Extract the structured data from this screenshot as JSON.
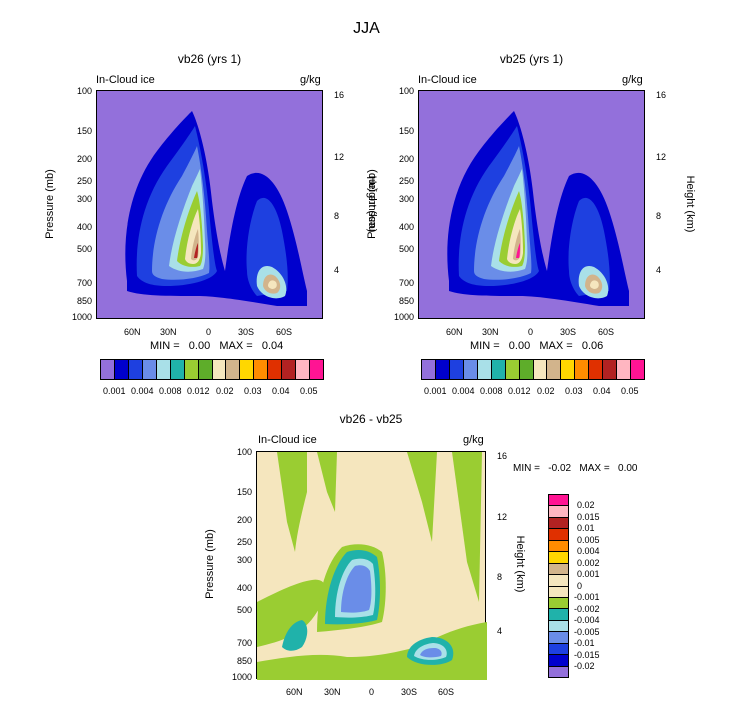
{
  "figure": {
    "title": "JJA",
    "variable_label": "In-Cloud ice",
    "units": "g/kg",
    "y_label": "Pressure (mb)",
    "y2_label": "Height (km)"
  },
  "chart_data": [
    {
      "type": "heatmap",
      "title": "vb26 (yrs 1)",
      "ylabel": "Pressure (mb)",
      "y2label": "Height (km)",
      "xticks": [
        "60N",
        "30N",
        "0",
        "30S",
        "60S"
      ],
      "yticks": [
        "100",
        "150",
        "200",
        "250",
        "300",
        "400",
        "500",
        "700",
        "850",
        "1000"
      ],
      "y2ticks": [
        "16",
        "12",
        "8",
        "4"
      ],
      "min_text": "MIN =   0.00   MAX =   0.04",
      "colorbar_levels": [
        "0.001",
        "0.004",
        "0.008",
        "0.012",
        "0.02",
        "0.03",
        "0.04",
        "0.05"
      ],
      "colorbar_colors": [
        "#9370DB",
        "#0000CD",
        "#1E40E0",
        "#6A8DE8",
        "#A9E0E8",
        "#20B2AA",
        "#9ACD32",
        "#5EAD2A",
        "#F5E6BE",
        "#D2B48C",
        "#FFD700",
        "#FF8C00",
        "#E03000",
        "#B22222",
        "#FFB6C1",
        "#FF1493"
      ]
    },
    {
      "type": "heatmap",
      "title": "vb25 (yrs 1)",
      "ylabel": "Pressure (mb)",
      "y2label": "Height (km)",
      "xticks": [
        "60N",
        "30N",
        "0",
        "30S",
        "60S"
      ],
      "yticks": [
        "100",
        "150",
        "200",
        "250",
        "300",
        "400",
        "500",
        "700",
        "850",
        "1000"
      ],
      "y2ticks": [
        "16",
        "12",
        "8",
        "4"
      ],
      "min_text": "MIN =   0.00   MAX =   0.06",
      "colorbar_levels": [
        "0.001",
        "0.004",
        "0.008",
        "0.012",
        "0.02",
        "0.03",
        "0.04",
        "0.05"
      ]
    },
    {
      "type": "heatmap",
      "title": "vb26 - vb25",
      "ylabel": "Pressure (mb)",
      "y2label": "Height (km)",
      "xticks": [
        "60N",
        "30N",
        "0",
        "30S",
        "60S"
      ],
      "yticks": [
        "100",
        "150",
        "200",
        "250",
        "300",
        "400",
        "500",
        "700",
        "850",
        "1000"
      ],
      "y2ticks": [
        "16",
        "12",
        "8",
        "4"
      ],
      "min_text": "MIN =   -0.02   MAX =   0.00",
      "colorbar_levels": [
        "0.02",
        "0.015",
        "0.01",
        "0.005",
        "0.004",
        "0.002",
        "0.001",
        "0",
        "-0.001",
        "-0.002",
        "-0.004",
        "-0.005",
        "-0.01",
        "-0.015",
        "-0.02"
      ],
      "colorbar_colors": [
        "#FF1493",
        "#FFB6C1",
        "#B22222",
        "#E03000",
        "#FF8C00",
        "#FFD700",
        "#D2B48C",
        "#F5E6BE",
        "#F5E6BE",
        "#9ACD32",
        "#20B2AA",
        "#A9E0E8",
        "#6A8DE8",
        "#1E40E0",
        "#0000CD",
        "#9370DB"
      ]
    }
  ]
}
